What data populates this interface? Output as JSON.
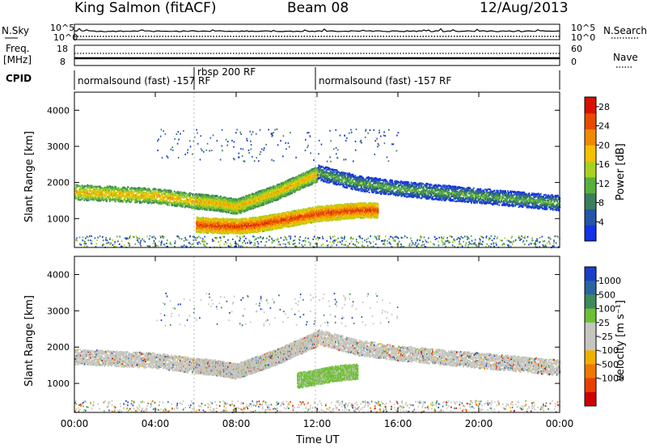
{
  "header": {
    "station": "King Salmon (fitACF)",
    "beam": "Beam 08",
    "date": "12/Aug/2013"
  },
  "strip_panels": {
    "nsky_label": "N.Sky",
    "nsearch_label": "N.Search",
    "freq_label_line1": "Freq.",
    "freq_label_line2": "[MHz]",
    "nave_label": "Nave",
    "cpid_label": "CPID",
    "noise_left_ticks": [
      "10^5",
      "10^0"
    ],
    "noise_right_ticks": [
      "10^5",
      "10^0"
    ],
    "freq_left_ticks": [
      "18",
      "8"
    ],
    "nave_right_ticks": [
      "60",
      "0"
    ]
  },
  "cpid_segments": [
    {
      "label": "normalsound (fast) -157 RF",
      "start_hour": 0
    },
    {
      "label": "rbsp 200 RF",
      "start_hour": 6
    },
    {
      "label": "normalsound (fast) -157 RF",
      "start_hour": 12
    }
  ],
  "colors": {
    "power_scale": [
      "#1432e6",
      "#2356a8",
      "#3b7f5e",
      "#57b03c",
      "#a9d21e",
      "#f5c000",
      "#f08a00",
      "#e84a00",
      "#d81000"
    ],
    "velocity_scale": [
      "#1a3fc8",
      "#2866a0",
      "#3f8a5a",
      "#6dc035",
      "#c6c6c0",
      "#c6c6c0",
      "#f0b000",
      "#f07800",
      "#e84000",
      "#d00000"
    ]
  },
  "chart_data": [
    {
      "type": "heatmap",
      "name": "power-panel",
      "xlabel": "",
      "ylabel": "Slant Range [km]",
      "x_ticks": [
        "00:00",
        "04:00",
        "08:00",
        "12:00",
        "16:00",
        "20:00",
        "00:00"
      ],
      "xlim_hours": [
        0,
        24
      ],
      "y_ticks": [
        1000,
        2000,
        3000,
        4000
      ],
      "ylim": [
        200,
        4500
      ],
      "colorbar_label": "Power [dB]",
      "colorbar_ticks": [
        4,
        8,
        12,
        16,
        20,
        24,
        28
      ],
      "colorbar_range": [
        0,
        30
      ],
      "features": [
        {
          "x": [
            0,
            2,
            4,
            6,
            7,
            8,
            9,
            10,
            11,
            12
          ],
          "y": [
            1750,
            1700,
            1650,
            1500,
            1450,
            1350,
            1550,
            1750,
            2000,
            2250
          ],
          "value": 20
        },
        {
          "x": [
            6,
            7,
            8,
            9,
            10,
            11,
            12,
            13,
            14,
            15
          ],
          "y": [
            850,
            820,
            800,
            850,
            950,
            1050,
            1150,
            1200,
            1250,
            1250
          ],
          "value": 26
        },
        {
          "x": [
            12,
            14,
            16,
            18,
            20,
            22,
            24
          ],
          "y": [
            2300,
            2000,
            1850,
            1750,
            1650,
            1550,
            1450
          ],
          "value": 12
        }
      ]
    },
    {
      "type": "heatmap",
      "name": "velocity-panel",
      "xlabel": "Time UT",
      "ylabel": "Slant Range [km]",
      "x_ticks": [
        "00:00",
        "04:00",
        "08:00",
        "12:00",
        "16:00",
        "20:00",
        "00:00"
      ],
      "xlim_hours": [
        0,
        24
      ],
      "y_ticks": [
        1000,
        2000,
        3000,
        4000
      ],
      "ylim": [
        200,
        4500
      ],
      "colorbar_label": "Velocity [m s⁻¹]",
      "colorbar_ticks": [
        "1000",
        "500",
        "100",
        "25",
        "-25",
        "-100",
        "-500",
        "-1000"
      ],
      "features": [
        {
          "x": [
            0,
            2,
            4,
            6,
            7,
            8,
            9,
            10,
            11,
            12
          ],
          "y": [
            1750,
            1700,
            1650,
            1500,
            1450,
            1350,
            1550,
            1750,
            2000,
            2250
          ],
          "value": 0
        },
        {
          "x": [
            11,
            12,
            13,
            14
          ],
          "y": [
            1100,
            1200,
            1300,
            1350
          ],
          "value": 100
        },
        {
          "x": [
            12,
            14,
            16,
            18,
            20,
            22,
            24
          ],
          "y": [
            2300,
            2000,
            1850,
            1750,
            1650,
            1550,
            1450
          ],
          "value": 0
        }
      ]
    }
  ]
}
